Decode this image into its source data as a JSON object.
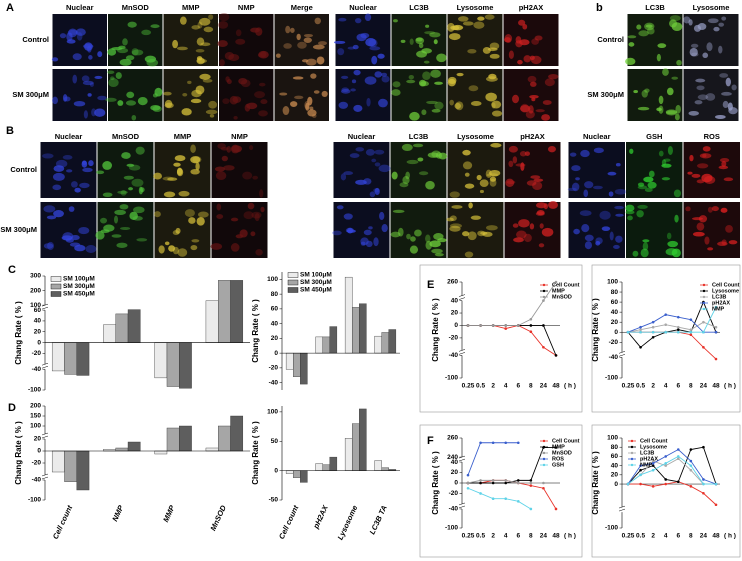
{
  "image_panels": [
    {
      "label": "A",
      "rows": [
        "Control",
        "SM 300μM"
      ],
      "groups": [
        [
          "Nuclear",
          "MnSOD",
          "MMP",
          "NMP",
          "Merge"
        ],
        [
          "Nuclear",
          "LC3B",
          "Lysosome",
          "pH2AX"
        ]
      ]
    },
    {
      "label": "b",
      "rows": [
        "Control",
        "SM 300μM"
      ],
      "groups": [
        [
          "LC3B",
          "Lysosome"
        ]
      ]
    },
    {
      "label": "B",
      "rows": [
        "Control",
        "SM 300μM"
      ],
      "groups": [
        [
          "Nuclear",
          "MnSOD",
          "MMP",
          "NMP"
        ],
        [
          "Nuclear",
          "LC3B",
          "Lysosome",
          "pH2AX"
        ],
        [
          "Nuclear",
          "GSH",
          "ROS"
        ]
      ]
    }
  ],
  "chart_data": [
    {
      "type": "bar",
      "panel": "C",
      "y_label": "Chang Rate ( % )",
      "categories": [
        null,
        null,
        null,
        null
      ],
      "legend": "upper-left",
      "series": [
        {
          "name": "SM 100μM",
          "color": "#ebebeb",
          "values": [
            -45,
            33,
            -65,
            130
          ]
        },
        {
          "name": "SM 300μM",
          "color": "#a6a6a6",
          "values": [
            -55,
            53,
            -90,
            270
          ]
        },
        {
          "name": "SM 450μM",
          "color": "#5e5e5e",
          "values": [
            -58,
            64,
            -95,
            270
          ]
        }
      ],
      "ylim": [
        -100,
        300
      ],
      "ysegments": [
        [
          -100,
          -40
        ],
        [
          -40,
          60
        ],
        [
          100,
          300
        ]
      ],
      "yticks": [
        -100,
        -40,
        -20,
        0,
        20,
        40,
        60,
        100,
        200,
        300
      ]
    },
    {
      "type": "bar",
      "y_label": "Chang Rate ( % )",
      "categories": [
        null,
        null,
        null,
        null
      ],
      "legend": "upper-left",
      "series": [
        {
          "name": "SM 100μM",
          "color": "#ebebeb",
          "values": [
            -22,
            22,
            103,
            23
          ]
        },
        {
          "name": "SM 300μM",
          "color": "#a6a6a6",
          "values": [
            -32,
            22,
            62,
            28
          ]
        },
        {
          "name": "SM 450μM",
          "color": "#5e5e5e",
          "values": [
            -42,
            36,
            67,
            32
          ]
        }
      ],
      "ylim": [
        -50,
        110
      ],
      "yticks": [
        -40,
        -20,
        0,
        20,
        40,
        60,
        80,
        100
      ]
    },
    {
      "type": "bar",
      "panel": "D",
      "y_label": "Chang Rate ( % )",
      "categories": [
        "Cell count",
        "NMP",
        "MMP",
        "MnSOD"
      ],
      "series": [
        {
          "name": "SM 100μM",
          "color": "#ebebeb",
          "values": [
            -35,
            3,
            -5,
            5
          ]
        },
        {
          "name": "SM 300μM",
          "color": "#a6a6a6",
          "values": [
            -45,
            5,
            90,
            100
          ]
        },
        {
          "name": "SM 450μM",
          "color": "#5e5e5e",
          "values": [
            -70,
            15,
            100,
            150
          ]
        }
      ],
      "ylim": [
        -100,
        200
      ],
      "ysegments": [
        [
          -100,
          -40
        ],
        [
          -40,
          20
        ],
        [
          60,
          200
        ]
      ],
      "yticks": [
        -100,
        -40,
        -20,
        0,
        20,
        100,
        150,
        200
      ]
    },
    {
      "type": "bar",
      "y_label": "Chang Rate ( % )",
      "categories": [
        "Cell count",
        "pH2AX",
        "Lysosome",
        "LC3B TA"
      ],
      "series": [
        {
          "name": "SM 100μM",
          "color": "#ebebeb",
          "values": [
            -5,
            12,
            55,
            17
          ]
        },
        {
          "name": "SM 300μM",
          "color": "#a6a6a6",
          "values": [
            -12,
            10,
            80,
            5
          ]
        },
        {
          "name": "SM 450μM",
          "color": "#5e5e5e",
          "values": [
            -20,
            23,
            105,
            2
          ]
        }
      ],
      "ylim": [
        -50,
        110
      ],
      "yticks": [
        -50,
        0,
        50,
        100
      ]
    },
    {
      "type": "line",
      "panel": "E",
      "y_label": "Chang Rate ( % )",
      "x_label": "( h )",
      "legend": "upper-right",
      "categories": [
        "0.25",
        "0.5",
        "2",
        "4",
        "6",
        "8",
        "24",
        "48"
      ],
      "series": [
        {
          "name": "Cell Count",
          "color": "#e8332a",
          "values": [
            0,
            0,
            0,
            -5,
            0,
            -10,
            -35,
            -40
          ]
        },
        {
          "name": "MMP",
          "color": "#000000",
          "values": [
            0,
            0,
            0,
            0,
            0,
            0,
            0,
            -40
          ]
        },
        {
          "name": "MnSOD",
          "color": "#9a9a9a",
          "values": [
            0,
            0,
            0,
            0,
            0,
            10,
            40,
            260
          ]
        }
      ],
      "ylim": [
        -100,
        260
      ],
      "ysegments": [
        [
          -100,
          -40
        ],
        [
          -40,
          40
        ],
        [
          240,
          260
        ]
      ],
      "yticks": [
        -100,
        -40,
        -20,
        0,
        20,
        40,
        260
      ]
    },
    {
      "type": "line",
      "y_label": "Chang Rate ( % )",
      "x_label": "( h )",
      "legend": "upper-right",
      "categories": [
        "0.25",
        "0.5",
        "2",
        "4",
        "6",
        "8",
        "24",
        "48"
      ],
      "series": [
        {
          "name": "Cell Count",
          "color": "#e8332a",
          "values": [
            0,
            0,
            0,
            0,
            0,
            -5,
            -30,
            -45
          ]
        },
        {
          "name": "Lysosome",
          "color": "#000000",
          "values": [
            0,
            -30,
            -10,
            0,
            5,
            0,
            60,
            0
          ]
        },
        {
          "name": "LC3B",
          "color": "#aaaaaa",
          "values": [
            0,
            5,
            10,
            15,
            10,
            5,
            20,
            10
          ]
        },
        {
          "name": "pH2AX",
          "color": "#3a5fcd",
          "values": [
            0,
            10,
            20,
            35,
            30,
            25,
            0,
            0
          ]
        },
        {
          "name": "NMP",
          "color": "#5fd3e8",
          "values": [
            0,
            0,
            0,
            0,
            0,
            0,
            0,
            50
          ]
        }
      ],
      "ylim": [
        -100,
        100
      ],
      "ysegments": [
        [
          -100,
          -40
        ],
        [
          -40,
          100
        ]
      ],
      "yticks": [
        -100,
        -40,
        -20,
        0,
        20,
        40,
        60,
        80,
        100
      ]
    },
    {
      "type": "line",
      "panel": "F",
      "y_label": "Chang Rate ( % )",
      "x_label": "( h )",
      "legend": "upper-right",
      "categories": [
        "0.25",
        "0.5",
        "2",
        "4",
        "6",
        "8",
        "24",
        "48"
      ],
      "series": [
        {
          "name": "Cell Count",
          "color": "#e8332a",
          "values": [
            0,
            0,
            5,
            5,
            0,
            -5,
            -10,
            -40
          ]
        },
        {
          "name": "MMP",
          "color": "#000000",
          "values": [
            0,
            0,
            0,
            0,
            5,
            5,
            250,
            250
          ]
        },
        {
          "name": "MnSOD",
          "color": "#9a9a9a",
          "values": [
            0,
            5,
            5,
            5,
            0,
            0,
            0,
            null
          ]
        },
        {
          "name": "ROS",
          "color": "#3a5fcd",
          "values": [
            15,
            255,
            255,
            255,
            255,
            null,
            null,
            null
          ]
        },
        {
          "name": "GSH",
          "color": "#5fd3e8",
          "values": [
            -10,
            -20,
            -30,
            -30,
            -35,
            -40,
            null,
            null
          ]
        }
      ],
      "ylim": [
        -100,
        260
      ],
      "ysegments": [
        [
          -100,
          -40
        ],
        [
          -40,
          40
        ],
        [
          240,
          260
        ]
      ],
      "yticks": [
        -100,
        -40,
        -20,
        0,
        20,
        40,
        240,
        260
      ]
    },
    {
      "type": "line",
      "y_label": "Chang Rate ( % )",
      "x_label": "( h )",
      "legend": "upper-left",
      "categories": [
        "0.25",
        "0.5",
        "2",
        "4",
        "6",
        "8",
        "24",
        "48"
      ],
      "series": [
        {
          "name": "Cell Count",
          "color": "#e8332a",
          "values": [
            0,
            0,
            -5,
            0,
            5,
            -5,
            -20,
            -45
          ]
        },
        {
          "name": "Lysosome",
          "color": "#000000",
          "values": [
            0,
            30,
            40,
            10,
            5,
            75,
            80,
            0
          ]
        },
        {
          "name": "LC3B",
          "color": "#aaaaaa",
          "values": [
            0,
            20,
            50,
            40,
            55,
            30,
            0,
            0
          ]
        },
        {
          "name": "pH2AX",
          "color": "#3a5fcd",
          "values": [
            0,
            40,
            45,
            60,
            75,
            50,
            10,
            0
          ]
        },
        {
          "name": "NMP",
          "color": "#5fd3e8",
          "values": [
            0,
            20,
            30,
            45,
            60,
            40,
            0,
            0
          ]
        }
      ],
      "ylim": [
        -100,
        100
      ],
      "ysegments": [
        [
          -100,
          -50
        ],
        [
          -50,
          100
        ]
      ],
      "yticks": [
        -100,
        0,
        20,
        40,
        60,
        80,
        100
      ]
    }
  ]
}
